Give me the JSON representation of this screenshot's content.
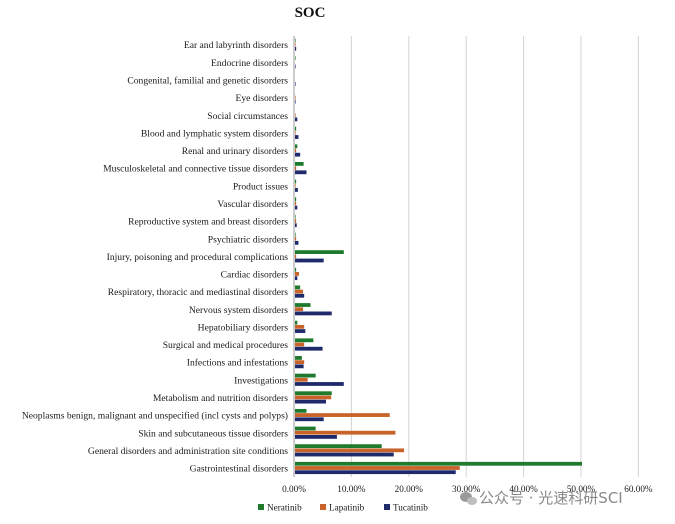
{
  "chart_data": {
    "type": "bar",
    "orientation": "horizontal",
    "title": "SOC",
    "xlabel": "",
    "ylabel": "",
    "xlim": [
      0,
      0.6
    ],
    "x_ticks": [
      "0.00%",
      "10.00%",
      "20.00%",
      "30.00%",
      "40.00%",
      "50.00%",
      "60.00%"
    ],
    "grid": "vertical",
    "legend_position": "bottom",
    "categories": [
      "Ear and labyrinth disorders",
      "Endocrine disorders",
      "Congenital, familial and genetic disorders",
      "Eye disorders",
      "Social circumstances",
      "Blood and lymphatic system disorders",
      "Renal and urinary disorders",
      "Musculoskeletal and connective tissue disorders",
      "Product issues",
      "Vascular disorders",
      "Reproductive system and breast disorders",
      "Psychiatric disorders",
      "Injury, poisoning and procedural complications",
      "Cardiac disorders",
      "Respiratory, thoracic and mediastinal disorders",
      "Nervous system disorders",
      "Hepatobiliary disorders",
      "Surgical and medical procedures",
      "Infections and infestations",
      "Investigations",
      "Metabolism and nutrition disorders",
      "Neoplasms benign, malignant and unspecified (incl cysts and polyps)",
      "Skin and subcutaneous tissue disorders",
      "General disorders and administration site conditions",
      "Gastrointestinal disorders"
    ],
    "series": [
      {
        "name": "Neratinib",
        "color": "#1e7b2e",
        "values": [
          0.001,
          0.001,
          0.0,
          0.0,
          0.0,
          0.002,
          0.004,
          0.015,
          0.002,
          0.002,
          0.001,
          0.001,
          0.085,
          0.002,
          0.009,
          0.027,
          0.004,
          0.032,
          0.012,
          0.036,
          0.064,
          0.02,
          0.036,
          0.151,
          0.5
        ]
      },
      {
        "name": "Lapatinib",
        "color": "#c8642a",
        "values": [
          0.001,
          0.0,
          0.0,
          0.001,
          0.001,
          0.001,
          0.002,
          0.002,
          0.001,
          0.002,
          0.002,
          0.002,
          0.002,
          0.007,
          0.014,
          0.014,
          0.016,
          0.016,
          0.016,
          0.022,
          0.063,
          0.165,
          0.175,
          0.19,
          0.287
        ]
      },
      {
        "name": "Tucatinib",
        "color": "#1f2a6b",
        "values": [
          0.002,
          0.001,
          0.001,
          0.001,
          0.004,
          0.006,
          0.009,
          0.02,
          0.005,
          0.004,
          0.003,
          0.006,
          0.05,
          0.004,
          0.016,
          0.064,
          0.018,
          0.048,
          0.015,
          0.085,
          0.054,
          0.05,
          0.073,
          0.172,
          0.28
        ]
      }
    ]
  },
  "watermark": "公众号 · 光速科研SCI"
}
